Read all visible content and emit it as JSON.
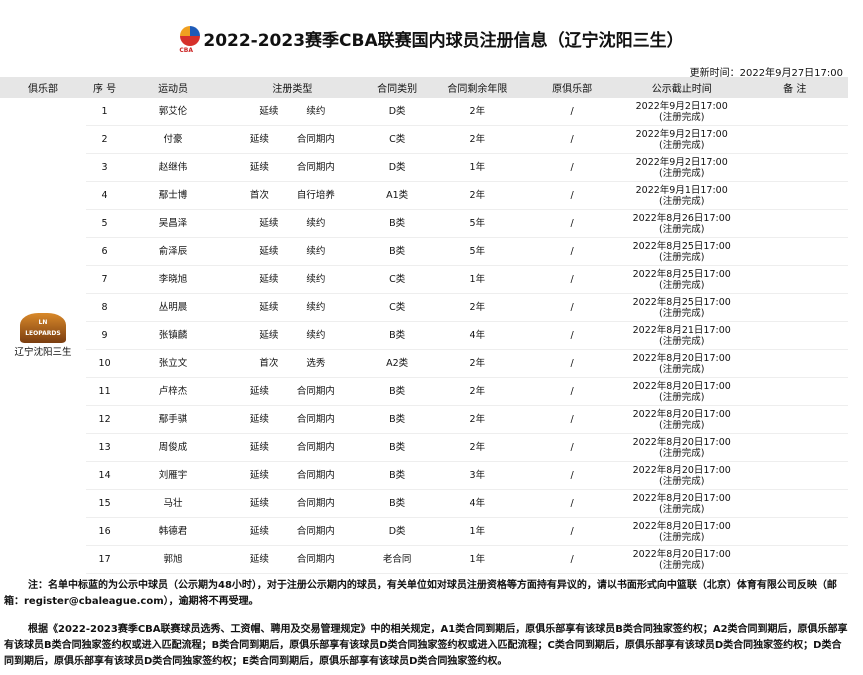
{
  "title": "2022-2023赛季CBA联赛国内球员注册信息（辽宁沈阳三生）",
  "logo_text": "CBA",
  "update_time": "更新时间：2022年9月27日17:00",
  "headers": [
    "俱乐部",
    "序 号",
    "运动员",
    "注册类型",
    "合同类别",
    "合同剩余年限",
    "原俱乐部",
    "公示截止时间",
    "备 注"
  ],
  "club": {
    "name": "辽宁沈阳三生",
    "logo_text": "LN LEOPARDS"
  },
  "rows": [
    [
      "1",
      "郭艾伦",
      "延续",
      "续约",
      "D类",
      "2年",
      "/",
      "2022年9月2日17:00",
      "(注册完成)"
    ],
    [
      "2",
      "付豪",
      "延续",
      "合同期内",
      "C类",
      "2年",
      "/",
      "2022年9月2日17:00",
      "(注册完成)"
    ],
    [
      "3",
      "赵继伟",
      "延续",
      "合同期内",
      "D类",
      "1年",
      "/",
      "2022年9月2日17:00",
      "(注册完成)"
    ],
    [
      "4",
      "鄢士博",
      "首次",
      "自行培养",
      "A1类",
      "2年",
      "/",
      "2022年9月1日17:00",
      "(注册完成)"
    ],
    [
      "5",
      "吴昌泽",
      "延续",
      "续约",
      "B类",
      "5年",
      "/",
      "2022年8月26日17:00",
      "(注册完成)"
    ],
    [
      "6",
      "俞泽辰",
      "延续",
      "续约",
      "B类",
      "5年",
      "/",
      "2022年8月25日17:00",
      "(注册完成)"
    ],
    [
      "7",
      "李晓旭",
      "延续",
      "续约",
      "C类",
      "1年",
      "/",
      "2022年8月25日17:00",
      "(注册完成)"
    ],
    [
      "8",
      "丛明晨",
      "延续",
      "续约",
      "C类",
      "2年",
      "/",
      "2022年8月25日17:00",
      "(注册完成)"
    ],
    [
      "9",
      "张镇麟",
      "延续",
      "续约",
      "B类",
      "4年",
      "/",
      "2022年8月21日17:00",
      "(注册完成)"
    ],
    [
      "10",
      "张立文",
      "首次",
      "选秀",
      "A2类",
      "2年",
      "/",
      "2022年8月20日17:00",
      "(注册完成)"
    ],
    [
      "11",
      "卢梓杰",
      "延续",
      "合同期内",
      "B类",
      "2年",
      "/",
      "2022年8月20日17:00",
      "(注册完成)"
    ],
    [
      "12",
      "鄢手骐",
      "延续",
      "合同期内",
      "B类",
      "2年",
      "/",
      "2022年8月20日17:00",
      "(注册完成)"
    ],
    [
      "13",
      "周俊成",
      "延续",
      "合同期内",
      "B类",
      "2年",
      "/",
      "2022年8月20日17:00",
      "(注册完成)"
    ],
    [
      "14",
      "刘雁宇",
      "延续",
      "合同期内",
      "B类",
      "3年",
      "/",
      "2022年8月20日17:00",
      "(注册完成)"
    ],
    [
      "15",
      "马壮",
      "延续",
      "合同期内",
      "B类",
      "4年",
      "/",
      "2022年8月20日17:00",
      "(注册完成)"
    ],
    [
      "16",
      "韩德君",
      "延续",
      "合同期内",
      "D类",
      "1年",
      "/",
      "2022年8月20日17:00",
      "(注册完成)"
    ],
    [
      "17",
      "郭旭",
      "延续",
      "合同期内",
      "老合同",
      "1年",
      "/",
      "2022年8月20日17:00",
      "(注册完成)"
    ]
  ],
  "note1": "注：名单中标蓝的为公示中球员（公示期为48小时），对于注册公示期内的球员，有关单位如对球员注册资格等方面持有异议的，请以书面形式向中篮联（北京）体育有限公司反映（邮箱：register@cbaleague.com），逾期将不再受理。",
  "note2": "根据《2022-2023赛季CBA联赛球员选秀、工资帽、聘用及交易管理规定》中的相关规定，A1类合同到期后，原俱乐部享有该球员B类合同独家签约权；A2类合同到期后，原俱乐部享有该球员B类合同独家签约权或进入匹配流程；B类合同到期后，原俱乐部享有该球员D类合同独家签约权或进入匹配流程；C类合同到期后，原俱乐部享有该球员D类合同独家签约权；D类合同到期后，原俱乐部享有该球员D类合同独家签约权；E类合同到期后，原俱乐部享有该球员D类合同独家签约权。"
}
